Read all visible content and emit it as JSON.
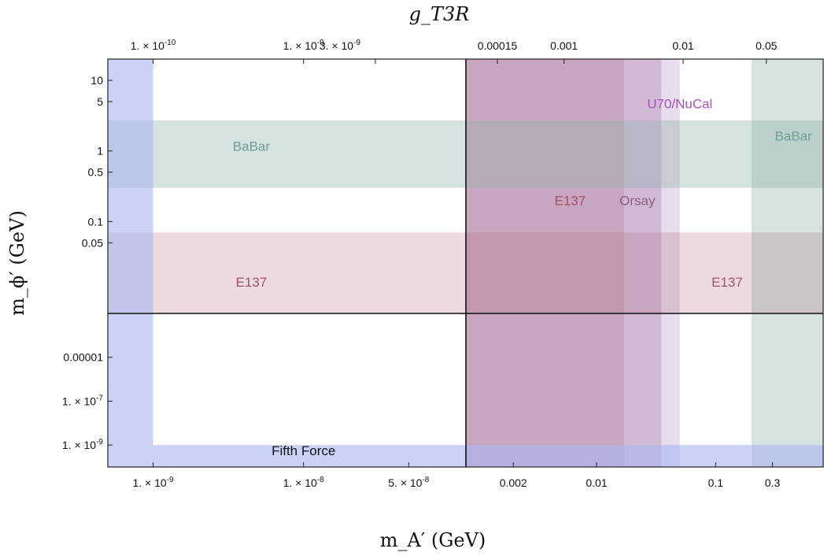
{
  "chart_data": {
    "type": "area",
    "title": "",
    "xlabel": "m_A′ (GeV)",
    "ylabel": "m_ϕ′ (GeV)",
    "top_axis_label": "g_T3R",
    "x_scale": "log",
    "y_scale": "log",
    "grid": false,
    "panels": {
      "x_left": {
        "xlim": [
          5e-10,
          1.2e-07
        ],
        "unit": "GeV"
      },
      "x_right": {
        "xlim": [
          0.0008,
          0.8
        ],
        "unit": "GeV"
      },
      "y_top": {
        "ylim": [
          0.005,
          20
        ],
        "unit": "GeV"
      },
      "y_bottom": {
        "ylim": [
          1e-10,
          0.001
        ],
        "unit": "GeV"
      }
    },
    "ticks": {
      "x_bottom_left": [
        "1. × 10^-9",
        "1. × 10^-8",
        "5. × 10^-8"
      ],
      "x_bottom_right": [
        "0.002",
        "0.01",
        "0.1",
        "0.3"
      ],
      "x_top_left": [
        "1. × 10^-10",
        "1. × 10^-9",
        "3. × 10^-9"
      ],
      "x_top_right": [
        "0.00015",
        "0.001",
        "0.01",
        "0.05"
      ],
      "y_left_top": [
        "10",
        "5",
        "1",
        "0.5",
        "0.1",
        "0.05"
      ],
      "y_left_bottom": [
        "0.00001",
        "1. × 10^-7",
        "1. × 10^-9"
      ]
    },
    "regions": [
      {
        "name": "Fifth Force",
        "color": "#aab6f2",
        "opacity": 0.62,
        "description": "m_A′ below 1e-9 GeV (any m_ϕ′) and m_ϕ′ below 1e-9 GeV (any m_A′)"
      },
      {
        "name": "BaBar",
        "color": "#93b3ac",
        "opacity": 0.38,
        "description": "0.3 ≤ m_ϕ′ ≤ 2.7 GeV for all m_A′; m_A′ ≥ 0.2 GeV for all m_ϕ′"
      },
      {
        "name": "E137",
        "color": "#b06f7c",
        "opacity": 0.25,
        "description": "m_ϕ′ ≤ 0.07 GeV for all m_A′; 0.0008 ≤ m_A′ ≤ 0.017 GeV for all m_ϕ′"
      },
      {
        "name": "Orsay",
        "color": "#b58fb9",
        "opacity": 0.45,
        "description": "0.0008 ≤ m_A′ ≤ 0.035 GeV"
      },
      {
        "name": "U70/NuCal",
        "color": "#cbb3d9",
        "opacity": 0.45,
        "description": "0.0008 ≤ m_A′ ≤ 0.05 GeV"
      }
    ],
    "labels": {
      "babar_left": "BaBar",
      "babar_right": "BaBar",
      "e137_left": "E137",
      "e137_mid": "E137",
      "e137_right": "E137",
      "orsay": "Orsay",
      "u70": "U70/NuCal",
      "fifth_force": "Fifth Force"
    },
    "colors": {
      "babar_text": "#6e9e99",
      "e137_text": "#a4506a",
      "orsay_text": "#8e5e7a",
      "u70_text": "#a554b3",
      "fifth_text": "#111111"
    }
  }
}
